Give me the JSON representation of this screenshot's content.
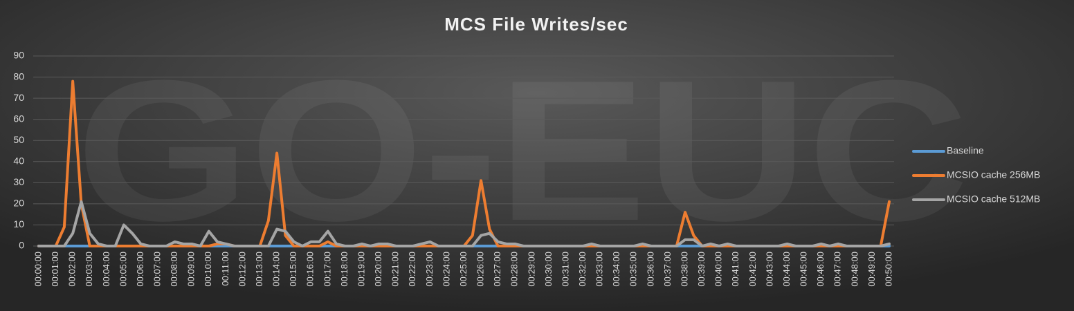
{
  "chart_data": {
    "type": "line",
    "title": "MCS File Writes/sec",
    "watermark": "GO-EUC",
    "categories": [
      "00:00:00",
      null,
      "00:01:00",
      null,
      "00:02:00",
      null,
      "00:03:00",
      null,
      "00:04:00",
      null,
      "00:05:00",
      null,
      "00:06:00",
      null,
      "00:07:00",
      null,
      "00:08:00",
      null,
      "00:09:00",
      null,
      "00:10:00",
      null,
      "00:11:00",
      null,
      "00:12:00",
      null,
      "00:13:00",
      null,
      "00:14:00",
      null,
      "00:15:00",
      null,
      "00:16:00",
      null,
      "00:17:00",
      null,
      "00:18:00",
      null,
      "00:19:00",
      null,
      "00:20:00",
      null,
      "00:21:00",
      null,
      "00:22:00",
      null,
      "00:23:00",
      null,
      "00:24:00",
      null,
      "00:25:00",
      null,
      "00:26:00",
      null,
      "00:27:00",
      null,
      "00:28:00",
      null,
      "00:29:00",
      null,
      "00:30:00",
      null,
      "00:31:00",
      null,
      "00:32:00",
      null,
      "00:33:00",
      null,
      "00:34:00",
      null,
      "00:35:00",
      null,
      "00:36:00",
      null,
      "00:37:00",
      null,
      "00:38:00",
      null,
      "00:39:00",
      null,
      "00:40:00",
      null,
      "00:41:00",
      null,
      "00:42:00",
      null,
      "00:43:00",
      null,
      "00:44:00",
      null,
      "00:45:00",
      null,
      "00:46:00",
      null,
      "00:47:00",
      null,
      "00:48:00",
      null,
      "00:49:00",
      null,
      "00:50:00"
    ],
    "series": [
      {
        "name": "Baseline",
        "color": "#5b9bd5",
        "values": [
          0,
          0,
          0,
          0,
          0,
          0,
          0,
          0,
          0,
          0,
          0,
          0,
          0,
          0,
          0,
          0,
          0,
          0,
          0,
          0,
          0,
          0,
          0,
          0,
          0,
          0,
          0,
          0,
          0,
          0,
          0,
          0,
          0,
          0,
          0,
          0,
          0,
          0,
          0,
          0,
          0,
          0,
          0,
          0,
          0,
          0,
          0,
          0,
          0,
          0,
          0,
          0,
          0,
          0,
          0,
          0,
          0,
          0,
          0,
          0,
          0,
          0,
          0,
          0,
          0,
          0,
          0,
          0,
          0,
          0,
          0,
          0,
          0,
          0,
          0,
          0,
          0,
          0,
          0,
          0,
          0,
          0,
          0,
          0,
          0,
          0,
          0,
          0,
          0,
          0,
          0,
          0,
          0,
          0,
          0,
          0,
          0,
          0,
          0,
          0,
          0
        ]
      },
      {
        "name": "MCSIO cache 256MB",
        "color": "#ed7d31",
        "values": [
          0,
          0,
          0,
          9,
          78,
          20,
          0,
          0,
          0,
          0,
          0,
          0,
          0,
          0,
          0,
          0,
          0,
          0,
          0,
          0,
          0,
          1,
          1,
          0,
          0,
          0,
          0,
          12,
          44,
          5,
          0,
          0,
          0,
          0,
          2,
          0,
          0,
          0,
          0,
          0,
          0,
          0,
          0,
          0,
          0,
          0,
          0,
          0,
          0,
          0,
          0,
          5,
          31,
          8,
          0,
          0,
          0,
          0,
          0,
          0,
          0,
          0,
          0,
          0,
          0,
          0,
          0,
          0,
          0,
          0,
          0,
          0,
          0,
          0,
          0,
          0,
          16,
          5,
          0,
          0,
          0,
          0,
          0,
          0,
          0,
          0,
          0,
          0,
          0,
          0,
          0,
          0,
          0,
          0,
          0,
          0,
          0,
          0,
          0,
          0,
          21
        ]
      },
      {
        "name": "MCSIO cache 512MB",
        "color": "#a5a5a5",
        "values": [
          0,
          0,
          0,
          0,
          6,
          21,
          6,
          1,
          0,
          0,
          10,
          6,
          1,
          0,
          0,
          0,
          2,
          1,
          1,
          0,
          7,
          2,
          1,
          0,
          0,
          0,
          0,
          0,
          8,
          7,
          2,
          0,
          2,
          2,
          7,
          1,
          0,
          0,
          1,
          0,
          1,
          1,
          0,
          0,
          0,
          1,
          2,
          0,
          0,
          0,
          0,
          0,
          5,
          6,
          2,
          1,
          1,
          0,
          0,
          0,
          0,
          0,
          0,
          0,
          0,
          1,
          0,
          0,
          0,
          0,
          0,
          1,
          0,
          0,
          0,
          0,
          3,
          3,
          0,
          1,
          0,
          1,
          0,
          0,
          0,
          0,
          0,
          0,
          1,
          0,
          0,
          0,
          1,
          0,
          1,
          0,
          0,
          0,
          0,
          0,
          1
        ]
      }
    ],
    "ylim": [
      0,
      90
    ],
    "yticks": [
      0,
      10,
      20,
      30,
      40,
      50,
      60,
      70,
      80,
      90
    ],
    "grid": true,
    "legend": "right"
  }
}
